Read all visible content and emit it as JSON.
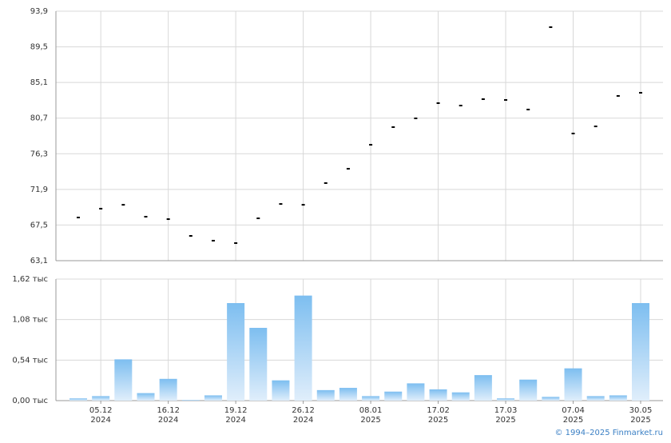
{
  "chart_data": [
    {
      "type": "scatter",
      "color": "#000000",
      "values": [
        68.43,
        69.52,
        70.0,
        68.53,
        68.23,
        66.16,
        65.57,
        65.27,
        68.33,
        70.1,
        70.0,
        72.68,
        74.45,
        77.41,
        79.59,
        80.67,
        82.55,
        82.25,
        83.04,
        82.94,
        81.76,
        91.93,
        78.8,
        79.68,
        83.44,
        83.83
      ],
      "ylim": [
        63.1,
        93.9
      ],
      "yticks": [
        {
          "value": 63.1,
          "label": "63,1"
        },
        {
          "value": 67.5,
          "label": "67,5"
        },
        {
          "value": 71.9,
          "label": "71,9"
        },
        {
          "value": 76.3,
          "label": "76,3"
        },
        {
          "value": 80.7,
          "label": "80,7"
        },
        {
          "value": 85.1,
          "label": "85,1"
        },
        {
          "value": 89.5,
          "label": "89,5"
        },
        {
          "value": 93.9,
          "label": "93,9"
        }
      ],
      "grid": true
    },
    {
      "type": "bar",
      "color": "#7dbef0",
      "categories": [
        null,
        "05.12",
        null,
        null,
        "16.12",
        null,
        null,
        "19.12",
        null,
        null,
        "26.12",
        null,
        null,
        "08.01",
        null,
        null,
        "17.02",
        null,
        null,
        "17.03",
        null,
        null,
        "07.04",
        null,
        null,
        "30.05"
      ],
      "category_years": [
        null,
        "2024",
        null,
        null,
        "2024",
        null,
        null,
        "2024",
        null,
        null,
        "2024",
        null,
        null,
        "2025",
        null,
        null,
        "2025",
        null,
        null,
        "2025",
        null,
        null,
        "2025",
        null,
        null,
        "2025"
      ],
      "values": [
        0.03,
        0.06,
        0.55,
        0.1,
        0.29,
        0.01,
        0.07,
        1.3,
        0.97,
        0.27,
        1.4,
        0.14,
        0.17,
        0.06,
        0.12,
        0.23,
        0.15,
        0.11,
        0.34,
        0.03,
        0.28,
        0.05,
        0.43,
        0.06,
        0.07,
        1.3
      ],
      "ylim": [
        0,
        1.62
      ],
      "yticks": [
        {
          "value": 0,
          "label": "0,00 тыс"
        },
        {
          "value": 0.54,
          "label": "0,54 тыс"
        },
        {
          "value": 1.08,
          "label": "1,08 тыс"
        },
        {
          "value": 1.62,
          "label": "1,62 тыс"
        }
      ],
      "grid": true
    }
  ],
  "footer": "© 1994–2025 Finmarket.ru"
}
